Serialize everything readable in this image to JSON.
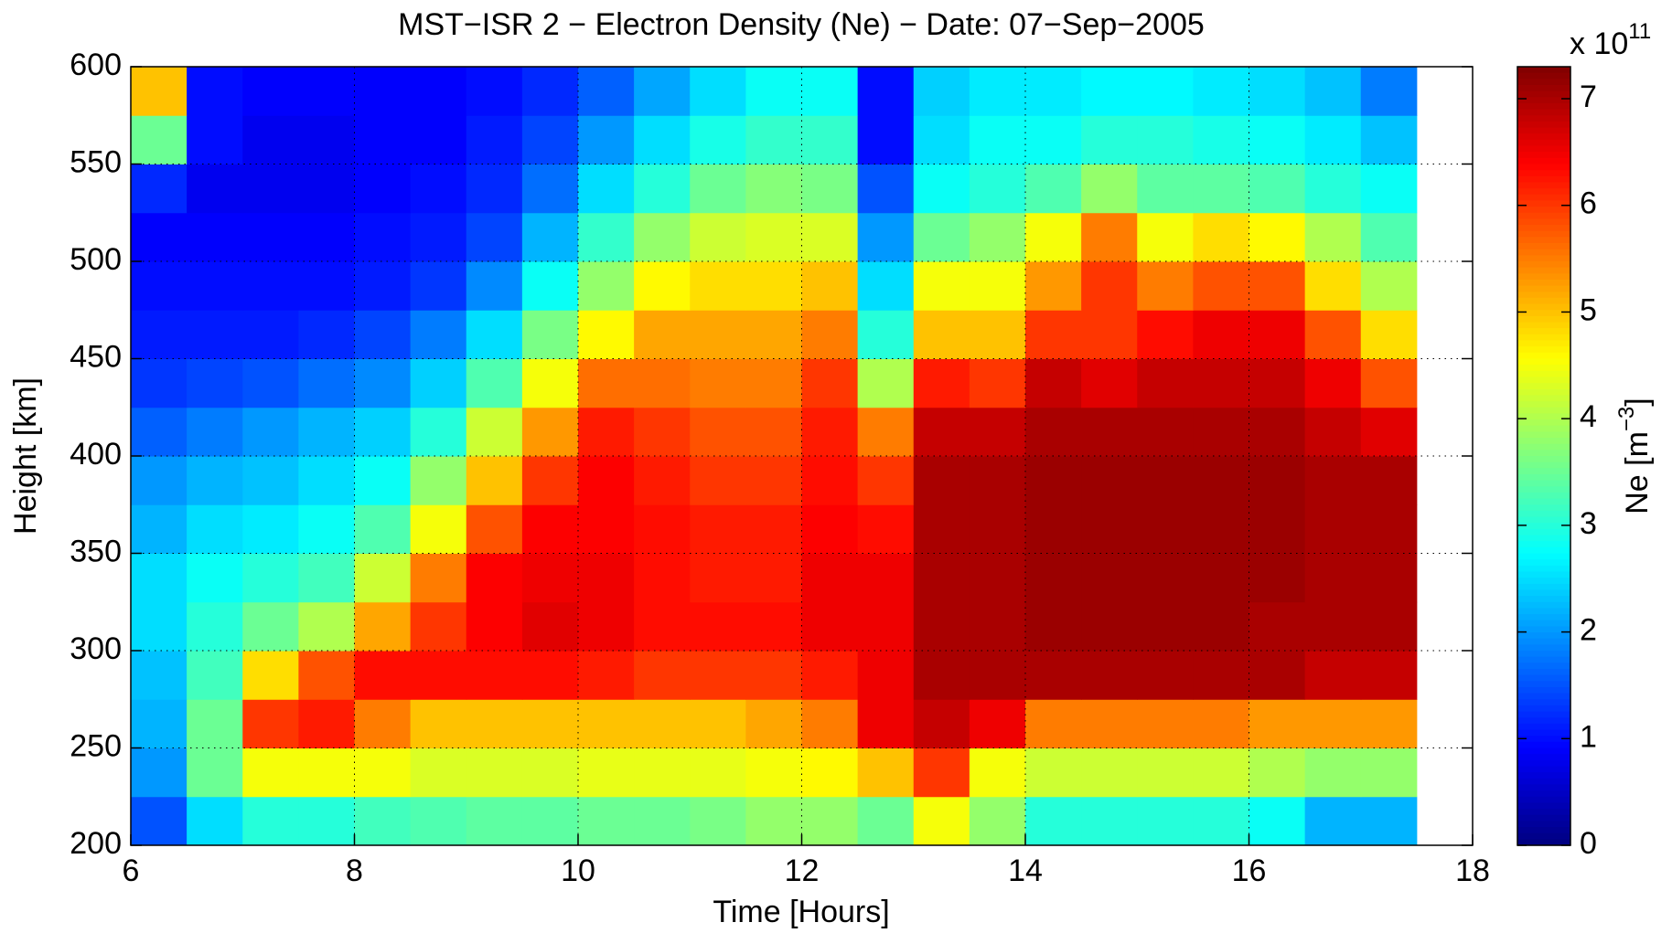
{
  "chart_data": {
    "type": "heatmap",
    "title": "MST−ISR 2 − Electron Density (Ne) − Date: 07−Sep−2005",
    "x_label": "Time [Hours]",
    "y_label": "Height [km]",
    "colorbar_label": {
      "text": "Ne [m",
      "superscript": "−3",
      "suffix": "]"
    },
    "colorbar_scale": {
      "base": "x 10",
      "exponent": "11"
    },
    "colormap": "jet",
    "grid": true,
    "xlim": [
      6,
      18
    ],
    "ylim": [
      200,
      600
    ],
    "clim": [
      0,
      7.3
    ],
    "xticks": [
      6,
      8,
      10,
      12,
      14,
      16,
      18
    ],
    "yticks": [
      200,
      250,
      300,
      350,
      400,
      450,
      500,
      550,
      600
    ],
    "cticks": [
      0,
      1,
      2,
      3,
      4,
      5,
      6,
      7
    ],
    "x": [
      6.25,
      6.75,
      7.25,
      7.75,
      8.25,
      8.75,
      9.25,
      9.75,
      10.25,
      10.75,
      11.25,
      11.75,
      12.25,
      12.75,
      13.25,
      13.75,
      14.25,
      14.75,
      15.25,
      15.75,
      16.25,
      16.75,
      17.25,
      17.75
    ],
    "y": [
      212.5,
      237.5,
      262.5,
      287.5,
      312.5,
      337.5,
      362.5,
      387.5,
      412.5,
      437.5,
      462.5,
      487.5,
      512.5,
      537.5,
      562.5,
      587.5
    ],
    "values": [
      [
        1.5,
        2.5,
        3,
        3,
        3.2,
        3.3,
        3.4,
        3.4,
        3.5,
        3.5,
        3.6,
        3.8,
        3.8,
        3.5,
        4.5,
        3.8,
        3,
        3,
        3,
        3,
        2.8,
        2.2,
        2.2,
        null
      ],
      [
        2,
        3.5,
        4.5,
        4.5,
        4.5,
        4.3,
        4.3,
        4.3,
        4.4,
        4.4,
        4.4,
        4.5,
        4.6,
        5,
        6,
        4.5,
        4.2,
        4.2,
        4.2,
        4.2,
        4,
        3.8,
        3.8,
        null
      ],
      [
        2.2,
        3.5,
        6,
        6.2,
        5.5,
        5,
        5,
        5,
        5,
        5,
        5,
        5.2,
        5.5,
        6.5,
        6.8,
        6.5,
        5.5,
        5.5,
        5.5,
        5.5,
        5.3,
        5.3,
        5.3,
        null
      ],
      [
        2.3,
        3.2,
        4.8,
        5.8,
        6.3,
        6.3,
        6.3,
        6.3,
        6.2,
        6,
        6,
        6,
        6.2,
        6.5,
        7,
        7,
        7,
        7,
        7,
        7,
        7,
        6.8,
        6.8,
        null
      ],
      [
        2.5,
        3,
        3.5,
        4,
        5.2,
        6,
        6.4,
        6.6,
        6.5,
        6.3,
        6.3,
        6.3,
        6.5,
        6.5,
        7,
        7,
        7.1,
        7.1,
        7.1,
        7.1,
        7,
        7,
        7,
        null
      ],
      [
        2.5,
        2.8,
        3,
        3.2,
        4.2,
        5.5,
        6.4,
        6.5,
        6.5,
        6.3,
        6.2,
        6.2,
        6.5,
        6.5,
        7,
        7,
        7.1,
        7.1,
        7.1,
        7.1,
        7.1,
        7,
        7,
        null
      ],
      [
        2.2,
        2.5,
        2.6,
        2.8,
        3.3,
        4.5,
        5.8,
        6.4,
        6.4,
        6.3,
        6.2,
        6.2,
        6.4,
        6.3,
        7,
        7,
        7.1,
        7.1,
        7.1,
        7.1,
        7.1,
        7,
        7,
        null
      ],
      [
        2,
        2.2,
        2.3,
        2.5,
        2.8,
        3.8,
        5,
        6,
        6.4,
        6.2,
        6,
        6,
        6.3,
        6,
        7,
        7,
        7.1,
        7.1,
        7.1,
        7.1,
        7.1,
        7,
        7,
        null
      ],
      [
        1.6,
        1.8,
        2,
        2.2,
        2.4,
        3,
        4.2,
        5.3,
        6.2,
        6,
        5.8,
        5.8,
        6.2,
        5.5,
        6.8,
        6.8,
        7,
        7,
        7,
        7,
        7,
        6.8,
        6.6,
        null
      ],
      [
        1.3,
        1.4,
        1.5,
        1.7,
        1.9,
        2.4,
        3.3,
        4.5,
        5.6,
        5.6,
        5.5,
        5.5,
        6,
        4,
        6.2,
        6,
        6.8,
        6.6,
        6.8,
        6.8,
        6.8,
        6.5,
        5.8,
        null
      ],
      [
        1.1,
        1.1,
        1.1,
        1.2,
        1.4,
        1.8,
        2.5,
        3.6,
        4.6,
        5.2,
        5.2,
        5.2,
        5.5,
        3,
        5,
        5,
        6,
        6,
        6.3,
        6.5,
        6.5,
        5.8,
        4.8,
        null
      ],
      [
        1,
        1,
        1,
        1,
        1.1,
        1.3,
        1.9,
        2.8,
        3.8,
        4.6,
        4.8,
        4.8,
        5,
        2.5,
        4.5,
        4.5,
        5.3,
        6,
        5.5,
        5.8,
        5.8,
        4.8,
        4,
        null
      ],
      [
        0.9,
        0.9,
        0.9,
        0.9,
        1,
        1.1,
        1.4,
        2.2,
        3.1,
        3.8,
        4.2,
        4.3,
        4.3,
        2,
        3.5,
        3.8,
        4.5,
        5.5,
        4.5,
        4.8,
        4.6,
        4,
        3.3,
        null
      ],
      [
        1.2,
        0.8,
        0.8,
        0.8,
        0.9,
        1,
        1.2,
        1.7,
        2.5,
        3,
        3.5,
        3.7,
        3.6,
        1.5,
        2.8,
        3,
        3.3,
        3.8,
        3.4,
        3.4,
        3.3,
        3,
        2.8,
        null
      ],
      [
        3.5,
        1,
        0.8,
        0.8,
        0.9,
        0.9,
        1.1,
        1.4,
        2,
        2.5,
        2.9,
        3.1,
        3.1,
        1,
        2.5,
        2.8,
        2.8,
        3,
        3,
        2.9,
        2.8,
        2.6,
        2.3,
        null
      ],
      [
        5,
        1,
        0.9,
        0.9,
        0.9,
        0.9,
        1,
        1.2,
        1.6,
        2.1,
        2.5,
        2.8,
        2.8,
        1,
        2.4,
        2.6,
        2.6,
        2.7,
        2.7,
        2.6,
        2.5,
        2.3,
        1.8,
        null
      ]
    ]
  }
}
